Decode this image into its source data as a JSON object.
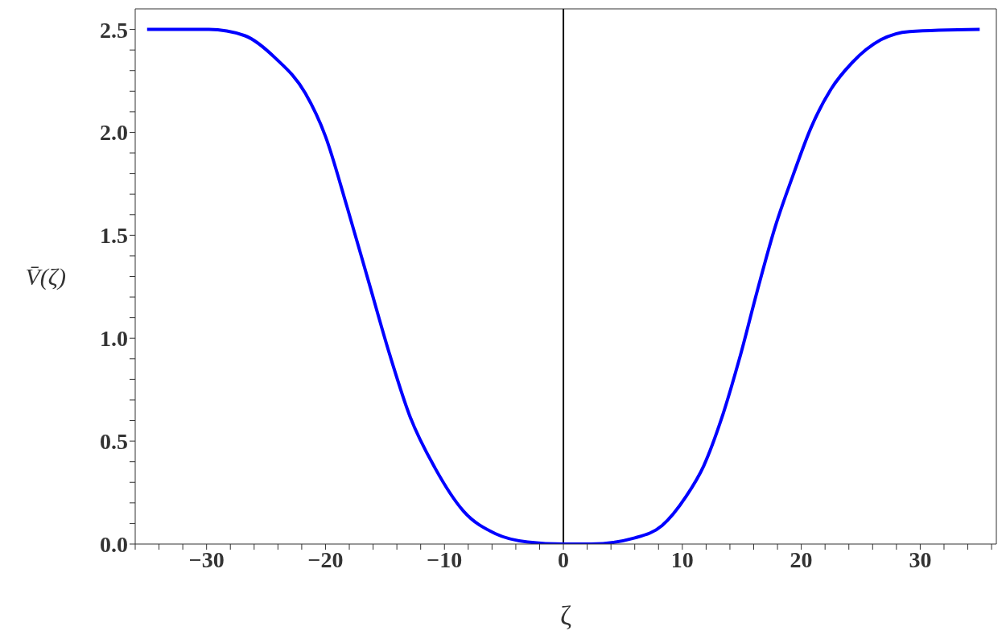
{
  "chart_data": {
    "type": "line",
    "xlabel": "ζ",
    "ylabel": "V̄(ζ)",
    "x": [
      -35,
      -29.8,
      -26.8,
      -24.2,
      -21.7,
      -20,
      -18.2,
      -16.4,
      -14.6,
      -12.9,
      -10.8,
      -8.4,
      -5.7,
      -3,
      0,
      2.3,
      6,
      8.3,
      10.3,
      11.8,
      13.3,
      14.8,
      16.3,
      17.8,
      19.3,
      20.8,
      22.5,
      24.3,
      26.7,
      29.1,
      35
    ],
    "series": [
      {
        "color": "#0000ff",
        "values": [
          2.5,
          2.5,
          2.47,
          2.36,
          2.19,
          1.98,
          1.64,
          1.28,
          0.92,
          0.62,
          0.37,
          0.16,
          0.05,
          0.01,
          0,
          0,
          0.03,
          0.09,
          0.23,
          0.38,
          0.61,
          0.9,
          1.23,
          1.54,
          1.79,
          2.02,
          2.21,
          2.34,
          2.45,
          2.49,
          2.5
        ]
      }
    ],
    "xlim": [
      -36,
      36.4
    ],
    "ylim": [
      0,
      2.6
    ],
    "xticks": [
      {
        "value": -36,
        "label": null
      },
      {
        "value": -34,
        "label": null
      },
      {
        "value": -32,
        "label": null
      },
      {
        "value": -30,
        "label": "−30"
      },
      {
        "value": -28,
        "label": null
      },
      {
        "value": -26,
        "label": null
      },
      {
        "value": -24,
        "label": null
      },
      {
        "value": -22,
        "label": null
      },
      {
        "value": -20,
        "label": "−20"
      },
      {
        "value": -18,
        "label": null
      },
      {
        "value": -16,
        "label": null
      },
      {
        "value": -14,
        "label": null
      },
      {
        "value": -12,
        "label": null
      },
      {
        "value": -10,
        "label": "−10"
      },
      {
        "value": -8,
        "label": null
      },
      {
        "value": -6,
        "label": null
      },
      {
        "value": -4,
        "label": null
      },
      {
        "value": -2,
        "label": null
      },
      0,
      {
        "value": 2,
        "label": null
      },
      {
        "value": 4,
        "label": null
      },
      {
        "value": 6,
        "label": null
      },
      {
        "value": 8,
        "label": null
      },
      10,
      {
        "value": 12,
        "label": null
      },
      {
        "value": 14,
        "label": null
      },
      {
        "value": 16,
        "label": null
      },
      {
        "value": 18,
        "label": null
      },
      20,
      {
        "value": 22,
        "label": null
      },
      {
        "value": 24,
        "label": null
      },
      {
        "value": 26,
        "label": null
      },
      {
        "value": 28,
        "label": null
      },
      30,
      {
        "value": 32,
        "label": null
      },
      {
        "value": 34,
        "label": null
      },
      {
        "value": 36,
        "label": null
      }
    ],
    "yticks": [
      {
        "value": 0,
        "label": "0.0"
      },
      {
        "value": 0.1,
        "label": null
      },
      {
        "value": 0.2,
        "label": null
      },
      {
        "value": 0.3,
        "label": null
      },
      {
        "value": 0.4,
        "label": null
      },
      0.5,
      {
        "value": 0.6,
        "label": null
      },
      {
        "value": 0.7,
        "label": null
      },
      {
        "value": 0.8,
        "label": null
      },
      {
        "value": 0.9,
        "label": null
      },
      {
        "value": 1,
        "label": "1.0"
      },
      {
        "value": 1.1,
        "label": null
      },
      {
        "value": 1.2,
        "label": null
      },
      {
        "value": 1.3,
        "label": null
      },
      {
        "value": 1.4,
        "label": null
      },
      1.5,
      {
        "value": 1.6,
        "label": null
      },
      {
        "value": 1.7,
        "label": null
      },
      {
        "value": 1.8,
        "label": null
      },
      {
        "value": 1.9,
        "label": null
      },
      {
        "value": 2,
        "label": "2.0"
      },
      {
        "value": 2.1,
        "label": null
      },
      {
        "value": 2.2,
        "label": null
      },
      {
        "value": 2.3,
        "label": null
      },
      {
        "value": 2.4,
        "label": null
      },
      2.5
    ],
    "ref_lines": [
      {
        "axis": "x",
        "value": 0,
        "color": "#000000"
      }
    ],
    "grid": false,
    "legend": false,
    "marker": "none",
    "line_style": "solid"
  }
}
